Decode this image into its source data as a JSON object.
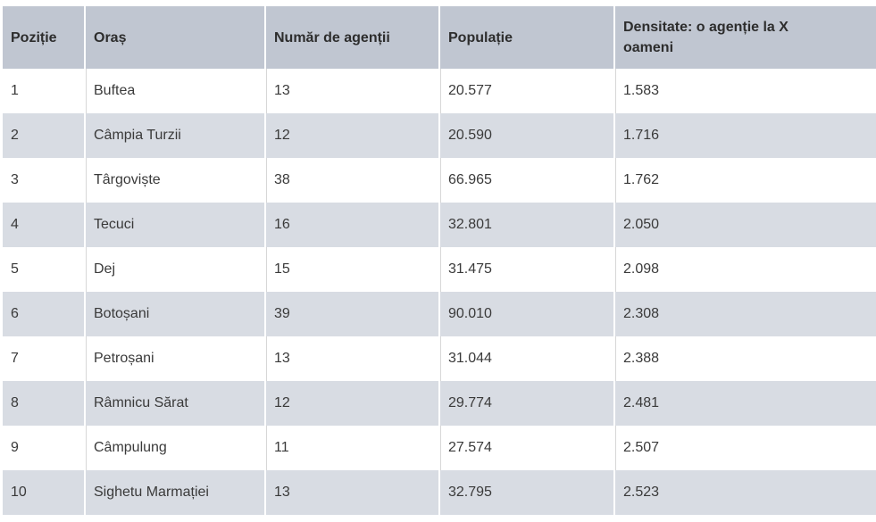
{
  "colors": {
    "header_bg": "#c0c6d1",
    "row_bg": "#ffffff",
    "row_alt_bg": "#d8dce3",
    "header_text": "#2d2d2d",
    "body_text": "#3a3a3a"
  },
  "chart_data": {
    "type": "table",
    "title": "",
    "columns": [
      {
        "key": "pozitie",
        "label": "Poziție"
      },
      {
        "key": "oras",
        "label": "Oraș"
      },
      {
        "key": "agentii",
        "label": "Număr de agenții"
      },
      {
        "key": "populatie",
        "label": "Populație"
      },
      {
        "key": "densitate",
        "label": "Densitate: o agenție la X oameni"
      }
    ],
    "rows": [
      [
        "1",
        "Buftea",
        "13",
        "20.577",
        "1.583"
      ],
      [
        "2",
        "Câmpia Turzii",
        "12",
        "20.590",
        "1.716"
      ],
      [
        "3",
        "Târgoviște",
        "38",
        "66.965",
        "1.762"
      ],
      [
        "4",
        "Tecuci",
        "16",
        "32.801",
        "2.050"
      ],
      [
        "5",
        "Dej",
        "15",
        "31.475",
        "2.098"
      ],
      [
        "6",
        "Botoșani",
        "39",
        "90.010",
        "2.308"
      ],
      [
        "7",
        "Petroșani",
        "13",
        "31.044",
        "2.388"
      ],
      [
        "8",
        "Râmnicu Sărat",
        "12",
        "29.774",
        "2.481"
      ],
      [
        "9",
        "Câmpulung",
        "11",
        "27.574",
        "2.507"
      ],
      [
        "10",
        "Sighetu Marmației",
        "13",
        "32.795",
        "2.523"
      ]
    ]
  }
}
